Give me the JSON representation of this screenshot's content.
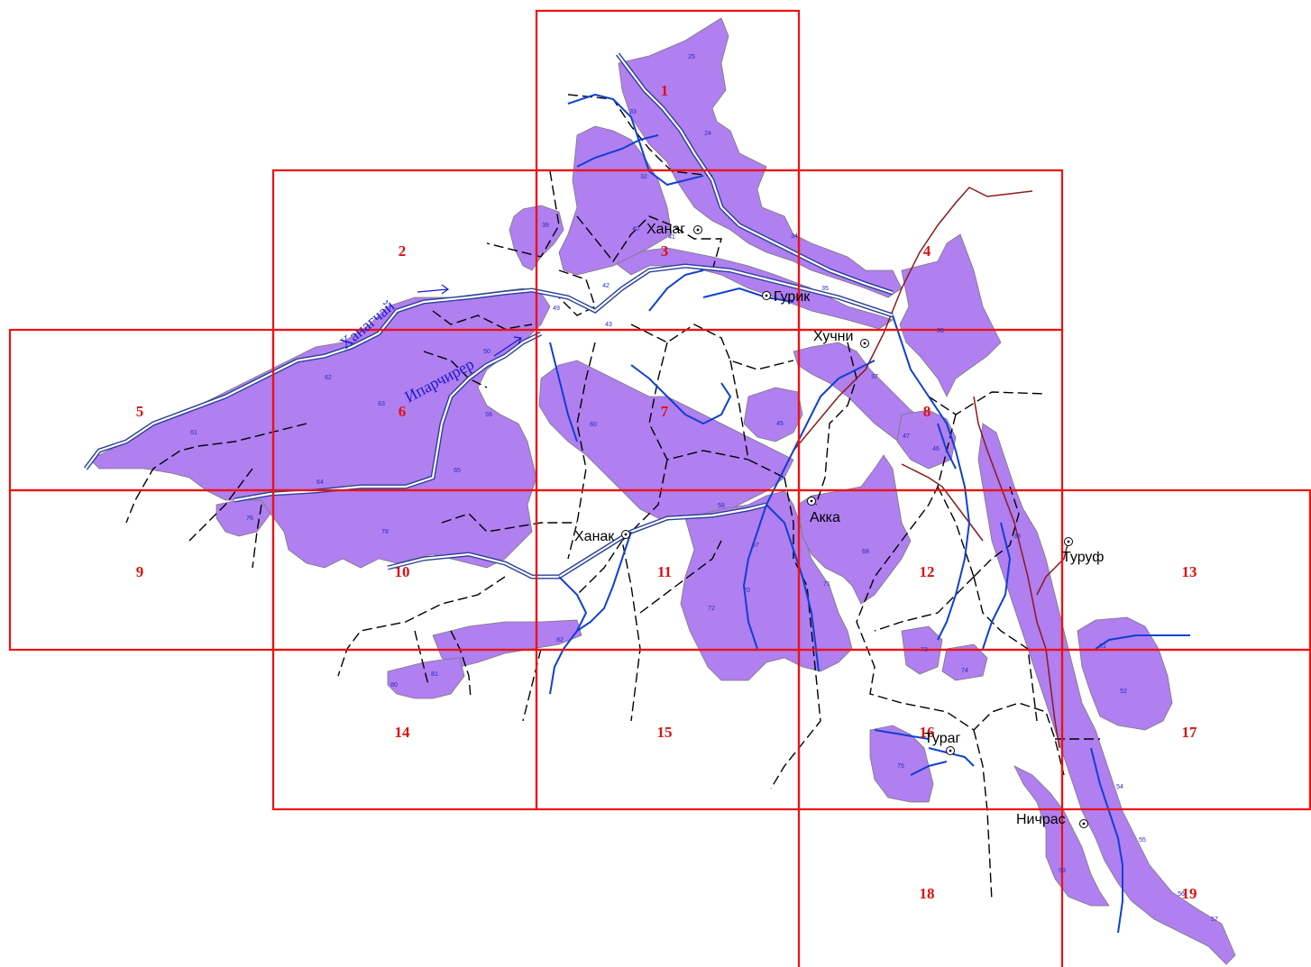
{
  "sheets": [
    "1",
    "2",
    "3",
    "4",
    "5",
    "6",
    "7",
    "8",
    "9",
    "10",
    "11",
    "12",
    "13",
    "14",
    "15",
    "16",
    "17",
    "18",
    "19"
  ],
  "settlements": {
    "khanag": "Ханаг",
    "gurik": "Гурик",
    "khuchni": "Хучни",
    "akka": "Акка",
    "khanak": "Ханак",
    "turuf": "Туруф",
    "turag": "Тураг",
    "nichras": "Ничрас"
  },
  "rivers": {
    "khanagchay": "Ханагчай",
    "iparchirer": "Ипарчирер"
  },
  "plots": [
    "25",
    "24",
    "33",
    "32",
    "39",
    "40",
    "34",
    "35",
    "36",
    "37",
    "38",
    "41",
    "42",
    "43",
    "49",
    "50",
    "62",
    "63",
    "61",
    "64",
    "65",
    "59",
    "60",
    "45",
    "46",
    "47",
    "58",
    "57",
    "70",
    "71",
    "72",
    "68",
    "76",
    "78",
    "80",
    "81",
    "82",
    "73",
    "74",
    "51",
    "52",
    "53",
    "54",
    "55",
    "56",
    "57b",
    "75"
  ],
  "colors": {
    "forest": "#b07ff0",
    "grid": "#ee1111",
    "river": "#1040d0",
    "road": "#000000",
    "boundary": "#8b1a1a"
  }
}
